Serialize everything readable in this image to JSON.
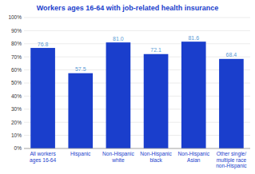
{
  "chart_data": {
    "type": "bar",
    "title": "Workers ages 16-64 with job-related health insurance",
    "categories": [
      "All workers\nages 16-64",
      "Hispanic",
      "Non-Hispanic\nwhite",
      "Non-Hispanic\nblack",
      "Non-Hispanic\nAsian",
      "Other single/\nmultiple race\nnon-Hispanic"
    ],
    "values": [
      76.8,
      57.5,
      81.0,
      72.1,
      81.6,
      68.4
    ],
    "value_labels": [
      "76.8",
      "57.5",
      "81.0",
      "72.1",
      "81.6",
      "68.4"
    ],
    "data_labels": true,
    "color": "#1a3ecc",
    "ylim": [
      0,
      100
    ],
    "yticks": [
      {
        "value": 0,
        "label": "0%"
      },
      {
        "value": 10,
        "label": "10%"
      },
      {
        "value": 20,
        "label": "20%"
      },
      {
        "value": 30,
        "label": "30%"
      },
      {
        "value": 40,
        "label": "40%"
      },
      {
        "value": 50,
        "label": "50%"
      },
      {
        "value": 60,
        "label": "60%"
      },
      {
        "value": 70,
        "label": "70%"
      },
      {
        "value": 80,
        "label": "80%"
      },
      {
        "value": 90,
        "label": "90%"
      },
      {
        "value": 100,
        "label": "100%"
      }
    ],
    "grid": true
  }
}
